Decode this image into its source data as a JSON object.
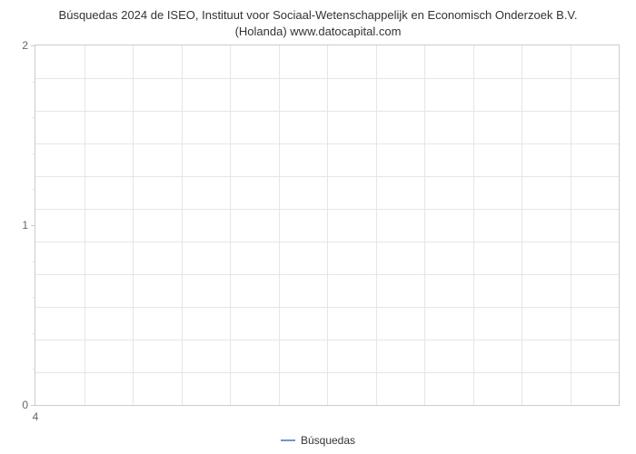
{
  "chart": {
    "type": "line",
    "title_line1": "Búsquedas 2024 de ISEO, Instituut voor Sociaal-Wetenschappelijk en Economisch Onderzoek B.V.",
    "title_line2": "(Holanda) www.datocapital.com",
    "title_fontsize": 13,
    "title_color": "#333333",
    "background_color": "#ffffff",
    "plot_border_color": "#cccccc",
    "grid_color": "#e6e6e6",
    "ylim": [
      0,
      2
    ],
    "y_major_ticks": [
      0,
      1,
      2
    ],
    "y_minor_count_between": 4,
    "y_tick_color": "#666666",
    "y_tick_fontsize": 12,
    "xlim": [
      4,
      4
    ],
    "x_ticks": [
      4
    ],
    "x_tick_color": "#666666",
    "x_tick_fontsize": 12,
    "h_gridlines": 11,
    "v_gridlines": 12,
    "series": [
      {
        "name": "Búsquedas",
        "color": "#6699cc",
        "line_width": 2,
        "data": []
      }
    ],
    "legend": {
      "position": "bottom-center",
      "label": "Búsquedas",
      "swatch_color": "#6699cc",
      "fontsize": 12,
      "text_color": "#333333"
    }
  }
}
